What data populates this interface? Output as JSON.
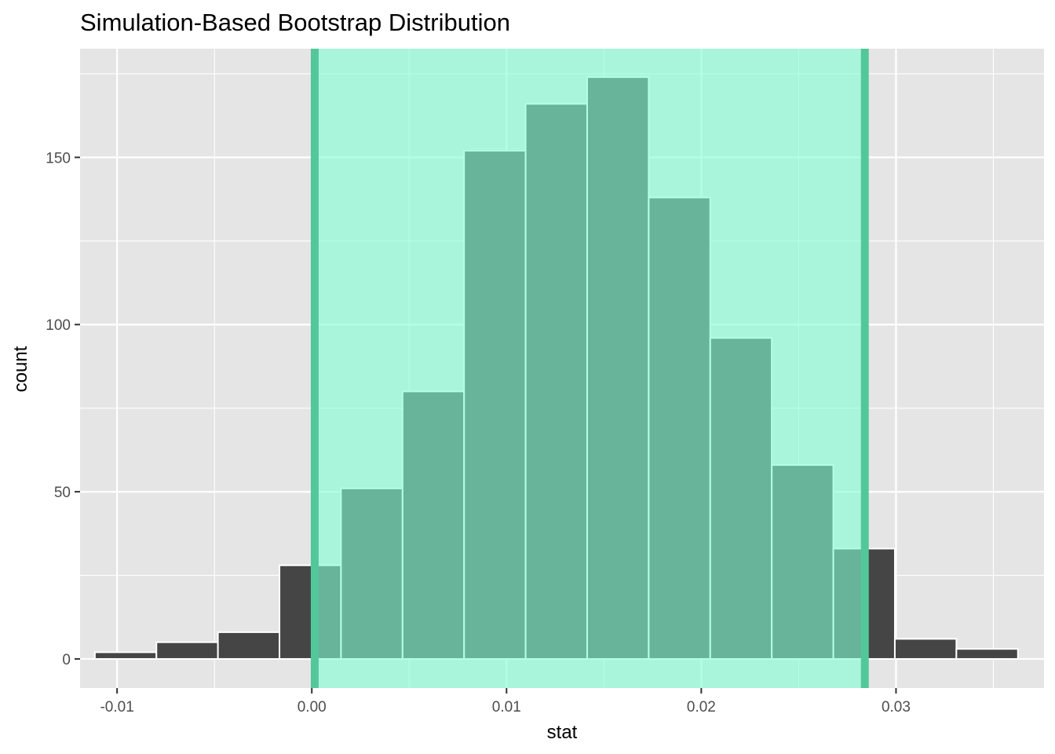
{
  "chart_data": {
    "type": "bar",
    "title": "Simulation-Based Bootstrap Distribution",
    "xlabel": "stat",
    "ylabel": "count",
    "xlim": [
      -0.0119,
      0.0376
    ],
    "ylim": [
      -8.7,
      182.5
    ],
    "x_ticks": [
      -0.01,
      0.0,
      0.01,
      0.02,
      0.03
    ],
    "x_tick_labels": [
      "-0.01",
      "0.00",
      "0.01",
      "0.02",
      "0.03"
    ],
    "y_ticks": [
      0,
      50,
      100,
      150
    ],
    "y_tick_labels": [
      "0",
      "50",
      "100",
      "150"
    ],
    "grid": true,
    "bin_width": 0.00316,
    "bin_centers": [
      -0.00956,
      -0.0064,
      -0.00324,
      -8e-05,
      0.00308,
      0.00624,
      0.0094,
      0.01256,
      0.01572,
      0.01888,
      0.02204,
      0.0252,
      0.02836,
      0.03152,
      0.03468
    ],
    "values": [
      2,
      5,
      8,
      28,
      51,
      80,
      152,
      166,
      174,
      138,
      96,
      58,
      33,
      6,
      3
    ],
    "confidence_interval": {
      "lower": 0.00015,
      "upper": 0.0284
    },
    "colors": {
      "panel": "#e5e5e5",
      "grid": "#ffffff",
      "bar_fill": "#454545",
      "bar_outline": "#ffffff",
      "ci_fill": "#7fffd4",
      "ci_line": "#54c79a"
    }
  }
}
